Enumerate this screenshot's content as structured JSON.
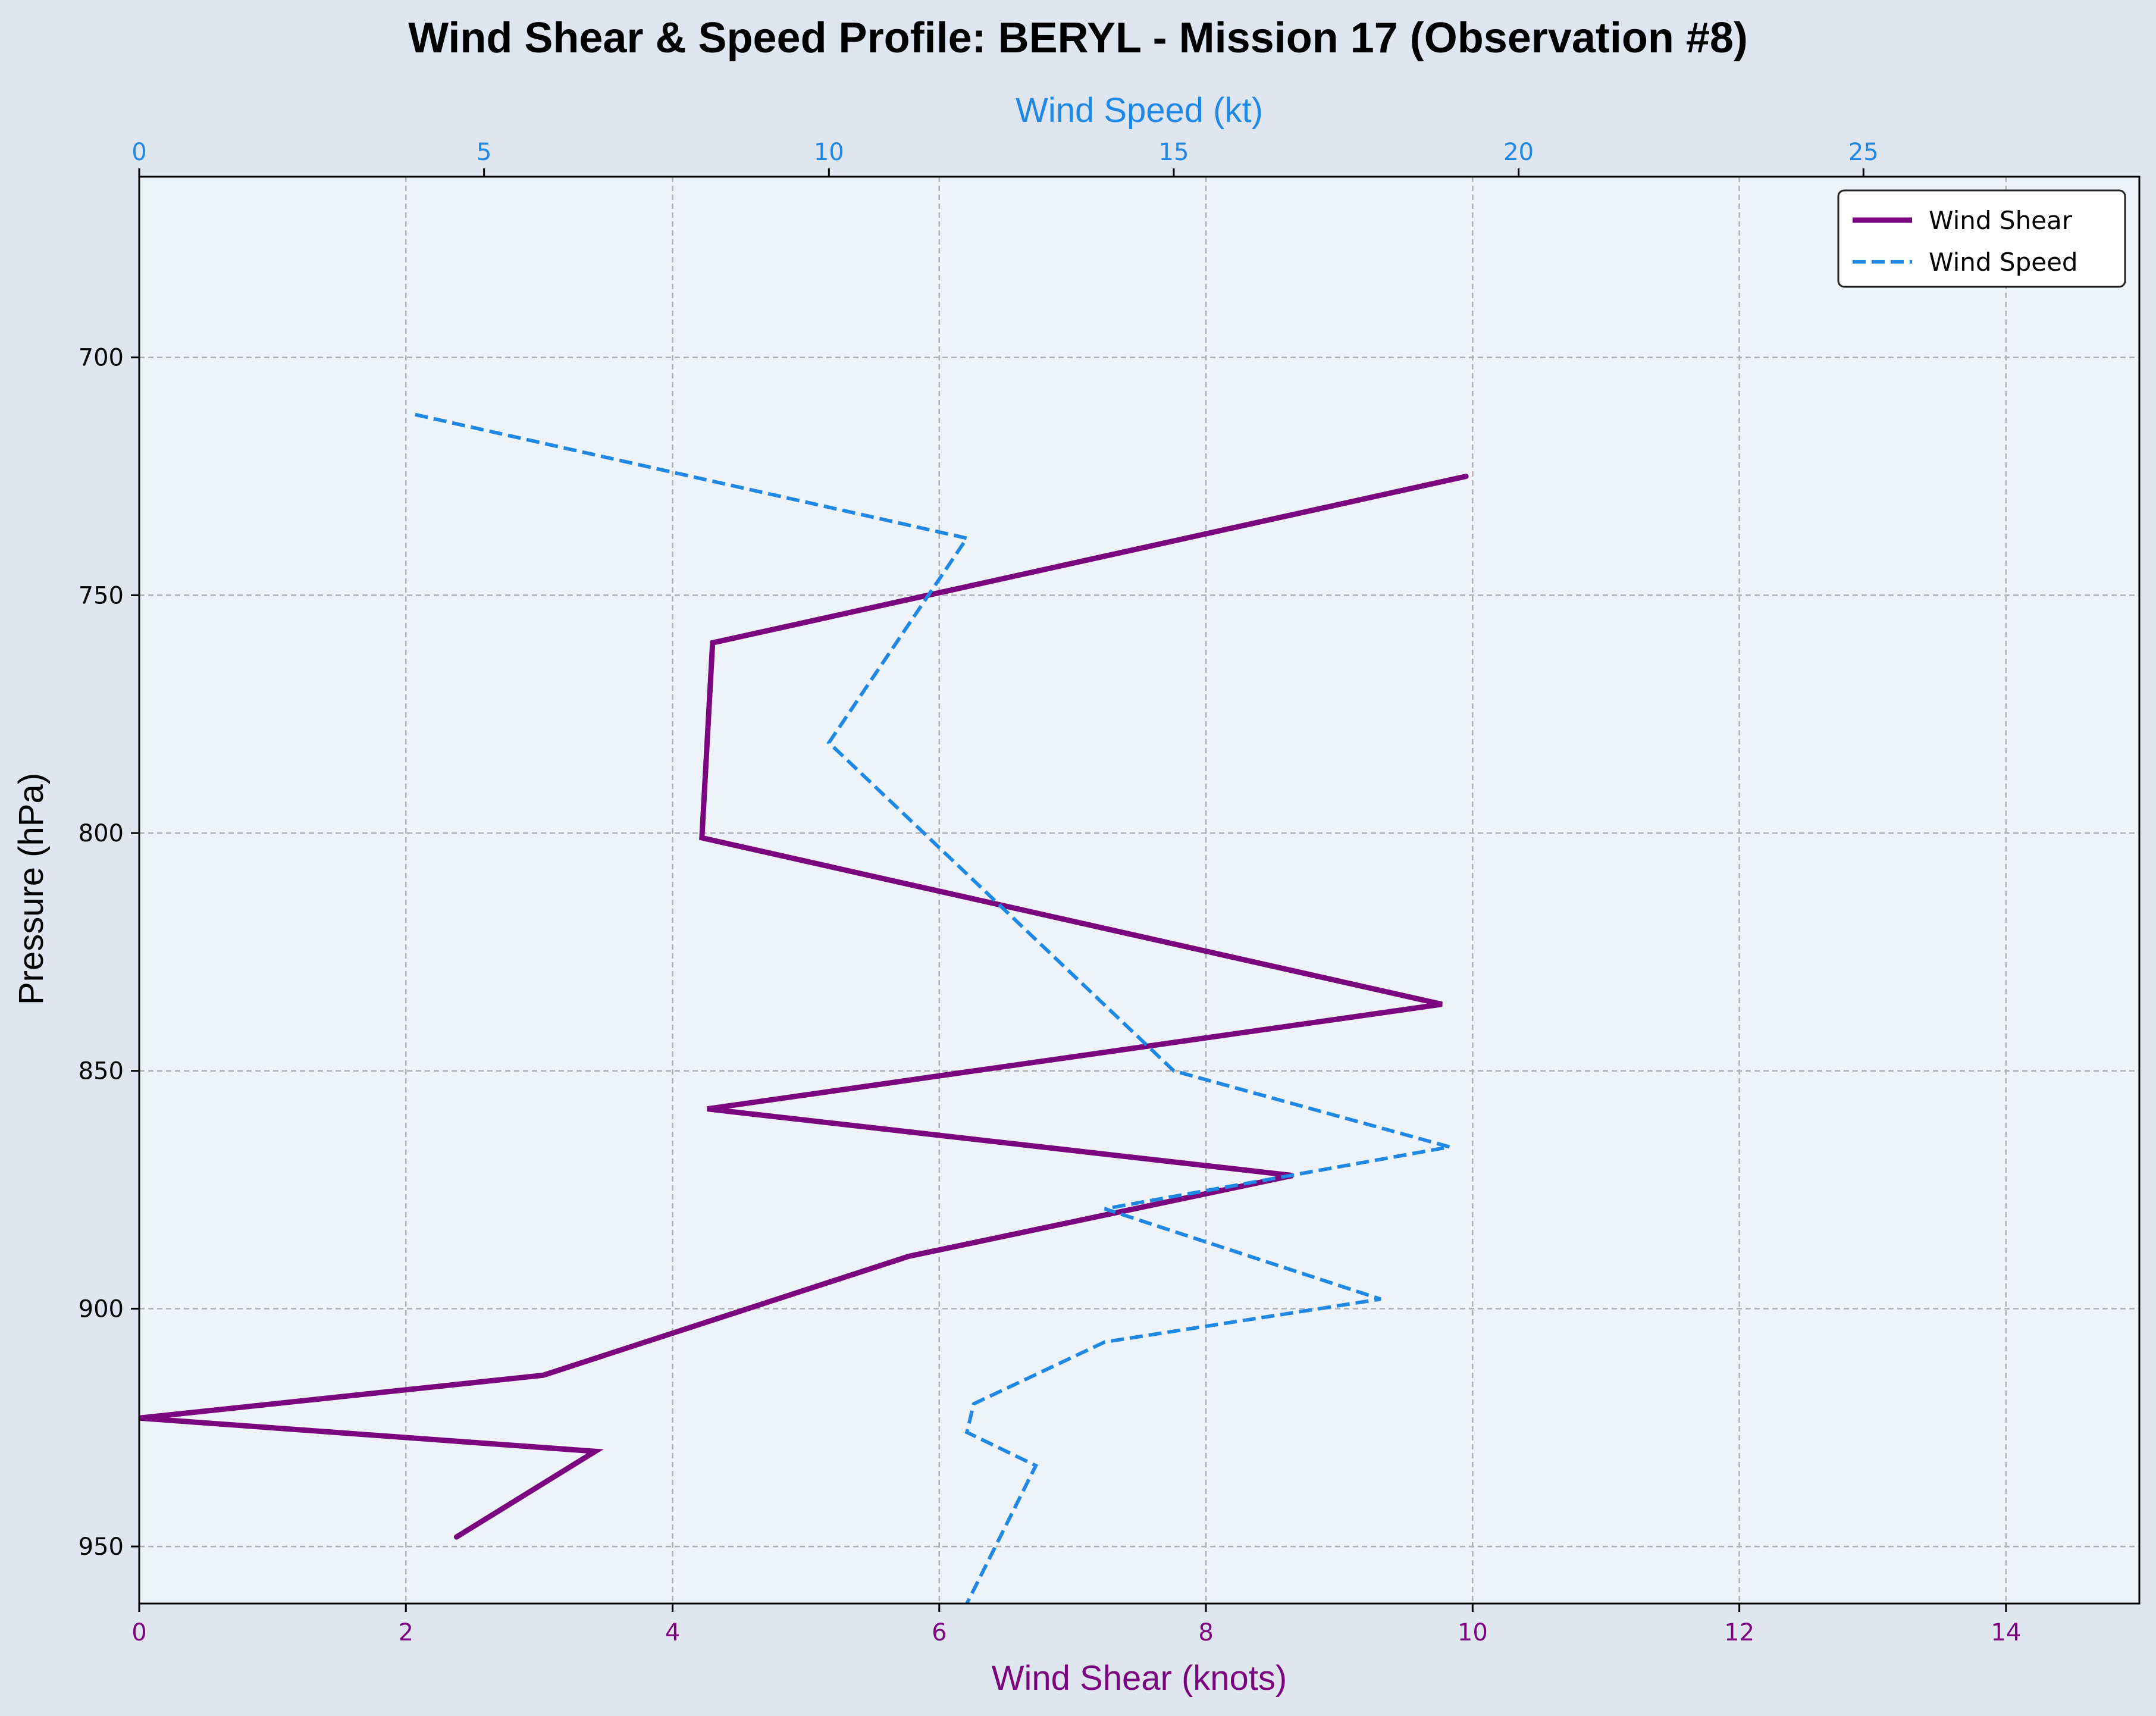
{
  "chart_data": {
    "type": "line",
    "title": "Wind Shear & Speed Profile: BERYL - Mission 17 (Observation #8)",
    "xlabel_bottom": "Wind Shear (knots)",
    "xlabel_top": "Wind Speed (kt)",
    "ylabel": "Pressure (hPa)",
    "y_inverted": true,
    "ylim": [
      962,
      662
    ],
    "xlim_bottom": [
      0,
      15
    ],
    "xlim_top": [
      0,
      29
    ],
    "x_ticks_bottom": [
      0,
      2,
      4,
      6,
      8,
      10,
      12,
      14
    ],
    "x_ticks_top": [
      0,
      5,
      10,
      15,
      20,
      25
    ],
    "y_ticks": [
      700,
      750,
      800,
      850,
      900,
      950
    ],
    "grid": true,
    "legend_placement": "top-right",
    "series": [
      {
        "name": "Wind Shear",
        "axis": "bottom",
        "color": "#7b057e",
        "style": "solid",
        "points": [
          [
            9.95,
            725
          ],
          [
            4.3,
            760
          ],
          [
            4.22,
            801
          ],
          [
            9.77,
            836
          ],
          [
            4.26,
            858
          ],
          [
            8.65,
            872
          ],
          [
            5.77,
            889
          ],
          [
            3.03,
            914
          ],
          [
            0.0,
            923
          ],
          [
            3.42,
            930
          ],
          [
            2.38,
            948
          ]
        ]
      },
      {
        "name": "Wind Speed",
        "axis": "top",
        "color": "#1f88e5",
        "style": "dashed",
        "points": [
          [
            4.0,
            712
          ],
          [
            12.0,
            738
          ],
          [
            10.0,
            781
          ],
          [
            15.0,
            850
          ],
          [
            19.0,
            866
          ],
          [
            14.0,
            879
          ],
          [
            18.0,
            898
          ],
          [
            14.0,
            907
          ],
          [
            12.1,
            920
          ],
          [
            12.0,
            926
          ],
          [
            13.0,
            933
          ],
          [
            12.0,
            962
          ]
        ]
      }
    ]
  }
}
